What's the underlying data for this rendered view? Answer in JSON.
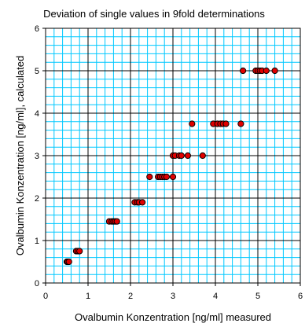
{
  "chart_data": {
    "type": "scatter",
    "title": "Deviation of single values in 9fold determinations",
    "xlabel": "Ovalbumin Konzentration [ng/ml] measured",
    "ylabel": "Ovalbumin Konzentration [ng/ml], calculated",
    "xlim": [
      0,
      6
    ],
    "ylim": [
      0,
      6
    ],
    "xticks": [
      "0",
      "1",
      "2",
      "3",
      "4",
      "5",
      "6"
    ],
    "yticks": [
      "0",
      "1",
      "2",
      "3",
      "4",
      "5",
      "6"
    ],
    "grid": true,
    "legend": "none",
    "colors": {
      "point_fill": "#e00000",
      "point_stroke": "#000000",
      "grid_minor": "#00c8ff",
      "grid_major": "#000000",
      "plot_background": "#ffffff"
    },
    "points": [
      {
        "x": 0.5,
        "y": 0.5
      },
      {
        "x": 0.52,
        "y": 0.5
      },
      {
        "x": 0.55,
        "y": 0.5
      },
      {
        "x": 0.72,
        "y": 0.75
      },
      {
        "x": 0.76,
        "y": 0.75
      },
      {
        "x": 0.8,
        "y": 0.75
      },
      {
        "x": 1.5,
        "y": 1.45
      },
      {
        "x": 1.56,
        "y": 1.45
      },
      {
        "x": 1.6,
        "y": 1.45
      },
      {
        "x": 1.64,
        "y": 1.45
      },
      {
        "x": 1.68,
        "y": 1.45
      },
      {
        "x": 2.1,
        "y": 1.9
      },
      {
        "x": 2.16,
        "y": 1.9
      },
      {
        "x": 2.2,
        "y": 1.9
      },
      {
        "x": 2.28,
        "y": 1.9
      },
      {
        "x": 2.45,
        "y": 2.5
      },
      {
        "x": 2.65,
        "y": 2.5
      },
      {
        "x": 2.7,
        "y": 2.5
      },
      {
        "x": 2.75,
        "y": 2.5
      },
      {
        "x": 2.8,
        "y": 2.5
      },
      {
        "x": 2.85,
        "y": 2.5
      },
      {
        "x": 3.0,
        "y": 2.5
      },
      {
        "x": 3.0,
        "y": 3.0
      },
      {
        "x": 3.05,
        "y": 3.0
      },
      {
        "x": 3.15,
        "y": 3.0
      },
      {
        "x": 3.2,
        "y": 3.0
      },
      {
        "x": 3.35,
        "y": 3.0
      },
      {
        "x": 3.7,
        "y": 3.0
      },
      {
        "x": 3.45,
        "y": 3.75
      },
      {
        "x": 3.95,
        "y": 3.75
      },
      {
        "x": 4.05,
        "y": 3.75
      },
      {
        "x": 4.12,
        "y": 3.75
      },
      {
        "x": 4.18,
        "y": 3.75
      },
      {
        "x": 4.25,
        "y": 3.75
      },
      {
        "x": 4.6,
        "y": 3.75
      },
      {
        "x": 4.65,
        "y": 5.0
      },
      {
        "x": 4.95,
        "y": 5.0
      },
      {
        "x": 5.0,
        "y": 5.0
      },
      {
        "x": 5.05,
        "y": 5.0
      },
      {
        "x": 5.1,
        "y": 5.0
      },
      {
        "x": 5.2,
        "y": 5.0
      },
      {
        "x": 5.4,
        "y": 5.0
      }
    ]
  }
}
